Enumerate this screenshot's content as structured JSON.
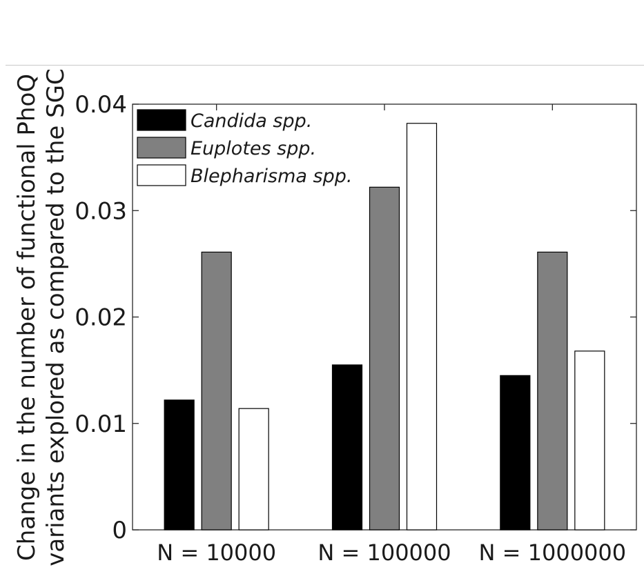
{
  "chart_data": {
    "type": "bar",
    "title": "",
    "xlabel": "",
    "ylabel": [
      "Change in the number of functional PhoQ",
      "variants explored as compared to the SGC"
    ],
    "categories": [
      "N = 10000",
      "N = 100000",
      "N = 1000000"
    ],
    "series": [
      {
        "name": "Candida spp.",
        "values": [
          0.0122,
          0.0155,
          0.0145
        ],
        "color": "#000000"
      },
      {
        "name": "Euplotes spp.",
        "values": [
          0.0261,
          0.0322,
          0.0261
        ],
        "color": "#808080"
      },
      {
        "name": "Blepharisma spp.",
        "values": [
          0.0114,
          0.0382,
          0.0168
        ],
        "color": "#ffffff"
      }
    ],
    "ylim": [
      0,
      0.04
    ],
    "yticks": [
      0,
      0.01,
      0.02,
      0.03,
      0.04
    ],
    "ytick_labels": [
      "0",
      "0.01",
      "0.02",
      "0.03",
      "0.04"
    ],
    "grid": false,
    "legend_position": "top-left"
  }
}
